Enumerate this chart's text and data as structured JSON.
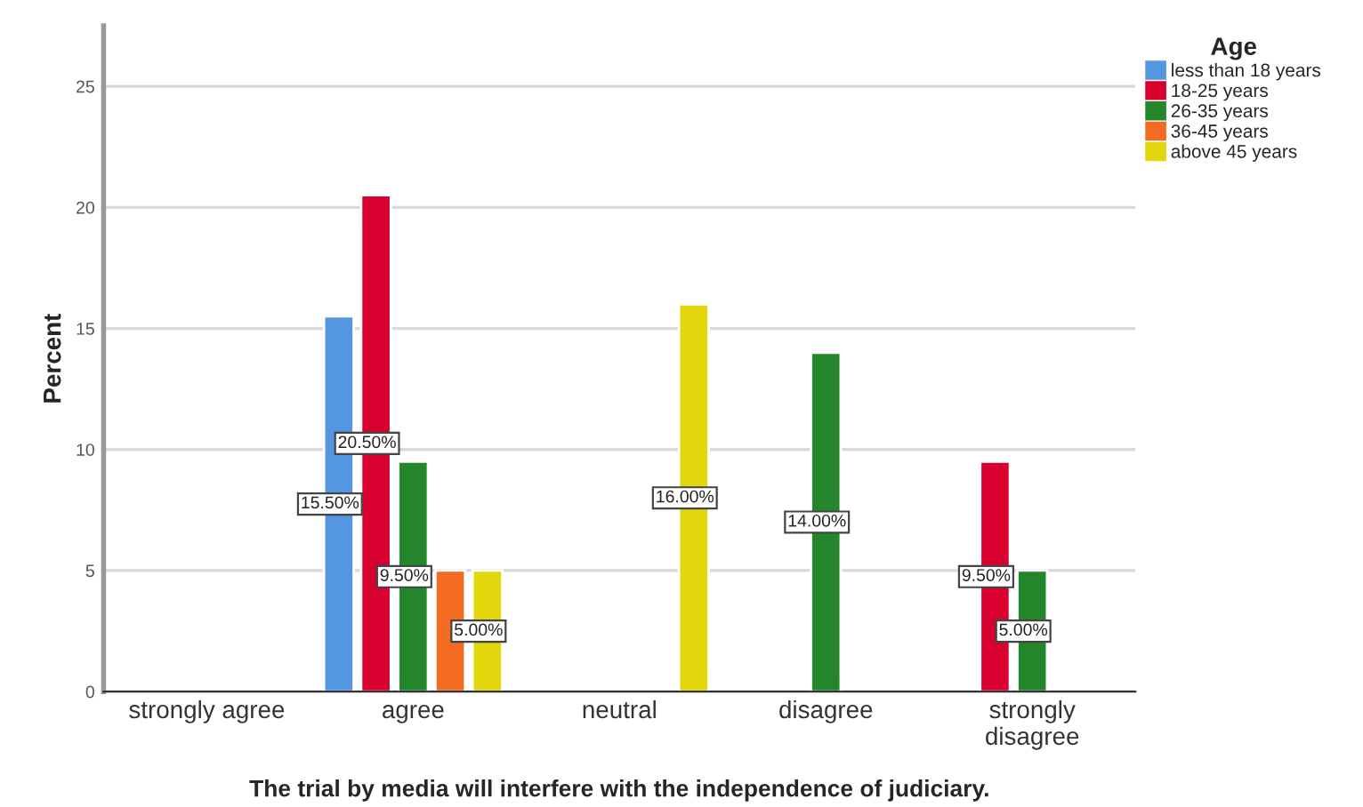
{
  "chart_data": {
    "type": "bar",
    "xlabel": "The trial by media will interfere with the independence of judiciary.",
    "ylabel": "Percent",
    "legend_title": "Age",
    "categories": [
      "strongly agree",
      "agree",
      "neutral",
      "disagree",
      "strongly\ndisagree"
    ],
    "series": [
      {
        "name": "less than 18 years",
        "color": "#5596e0",
        "values": [
          null,
          15.5,
          null,
          null,
          null
        ],
        "value_labels": [
          null,
          "15.50%",
          null,
          null,
          null
        ]
      },
      {
        "name": "18-25 years",
        "color": "#d7002f",
        "values": [
          null,
          20.5,
          null,
          null,
          9.5
        ],
        "value_labels": [
          null,
          "20.50%",
          null,
          null,
          "9.50%"
        ]
      },
      {
        "name": "26-35 years",
        "color": "#23862a",
        "values": [
          null,
          9.5,
          null,
          14.0,
          5.0
        ],
        "value_labels": [
          null,
          "9.50%",
          null,
          "14.00%",
          "5.00%"
        ]
      },
      {
        "name": "36-45 years",
        "color": "#f26b21",
        "values": [
          null,
          5.0,
          null,
          null,
          null
        ],
        "value_labels": [
          null,
          null,
          null,
          null,
          null
        ]
      },
      {
        "name": "above 45 years",
        "color": "#e2d60c",
        "values": [
          null,
          5.0,
          16.0,
          null,
          null
        ],
        "value_labels": [
          null,
          "5.00%",
          "16.00%",
          null,
          null
        ]
      }
    ],
    "ylim": [
      0,
      27.5
    ],
    "yticks": [
      0,
      5,
      10,
      15,
      20,
      25
    ],
    "grid": "y",
    "legend": "top right"
  }
}
